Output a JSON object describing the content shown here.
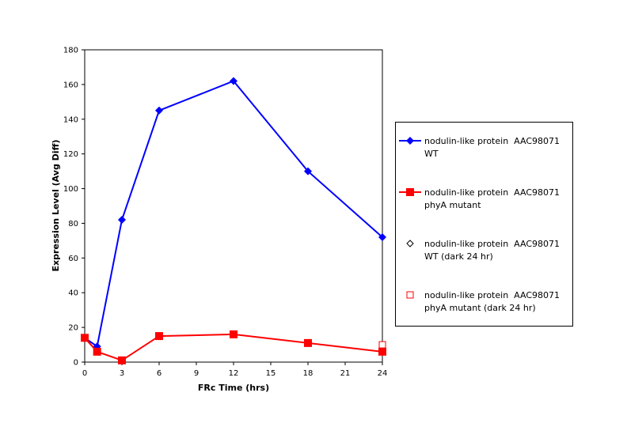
{
  "chart_data": {
    "type": "line",
    "xlabel": "FRc Time (hrs)",
    "ylabel": "Expression Level (Avg Diff)",
    "xlim": [
      0,
      24
    ],
    "ylim": [
      0,
      180
    ],
    "x_ticks": [
      0,
      3,
      6,
      9,
      12,
      15,
      18,
      21,
      24
    ],
    "y_ticks": [
      0,
      20,
      40,
      60,
      80,
      100,
      120,
      140,
      160,
      180
    ],
    "grid": false,
    "legend_position": "right",
    "series": [
      {
        "name": "nodulin-like protein  AAC98071 WT",
        "color": "#0000ff",
        "marker": "filled-diamond",
        "line": true,
        "x": [
          0,
          1,
          3,
          6,
          12,
          18,
          24
        ],
        "y": [
          14,
          9,
          82,
          145,
          162,
          110,
          72
        ]
      },
      {
        "name": "nodulin-like protein  AAC98071 phyA mutant",
        "color": "#ff0000",
        "marker": "filled-square",
        "line": true,
        "x": [
          0,
          1,
          3,
          6,
          12,
          18,
          24
        ],
        "y": [
          14,
          6,
          1,
          15,
          16,
          11,
          6
        ]
      },
      {
        "name": "nodulin-like protein  AAC98071 WT (dark 24 hr)",
        "color": "#000000",
        "marker": "open-diamond",
        "line": false,
        "x": [],
        "y": []
      },
      {
        "name": "nodulin-like protein  AAC98071 phyA mutant (dark 24 hr)",
        "color": "#ff0000",
        "marker": "open-square",
        "line": false,
        "x": [
          24
        ],
        "y": [
          10
        ]
      }
    ]
  }
}
